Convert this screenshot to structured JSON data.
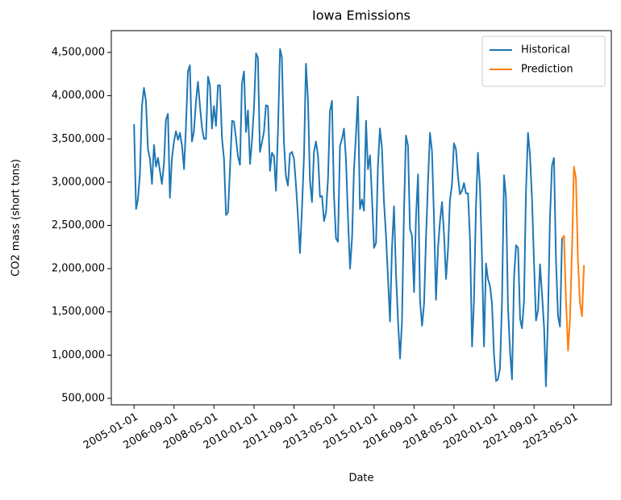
{
  "chart_data": {
    "type": "line",
    "title": "Iowa Emissions",
    "x_label": "Date",
    "y_label": "CO2 mass (short tons)",
    "xlim": [
      "2004-01-21",
      "2024-11-20"
    ],
    "xticks": [
      "2005-01-01",
      "2006-09-01",
      "2008-05-01",
      "2010-01-01",
      "2011-09-01",
      "2013-05-01",
      "2015-01-01",
      "2016-09-01",
      "2018-05-01",
      "2020-01-01",
      "2021-09-01",
      "2023-05-01"
    ],
    "ylim": [
      425000,
      4752000
    ],
    "yticks": [
      {
        "value": 500000,
        "label": "500,000"
      },
      {
        "value": 1000000,
        "label": "1,000,000"
      },
      {
        "value": 1500000,
        "label": "1,500,000"
      },
      {
        "value": 2000000,
        "label": "2,000,000"
      },
      {
        "value": 2500000,
        "label": "2,500,000"
      },
      {
        "value": 3000000,
        "label": "3,000,000"
      },
      {
        "value": 3500000,
        "label": "3,500,000"
      },
      {
        "value": 4000000,
        "label": "4,000,000"
      },
      {
        "value": 4500000,
        "label": "4,500,000"
      }
    ],
    "grid": false,
    "legend": "upper right",
    "series": [
      {
        "name": "Historical",
        "color": "#1f77b4",
        "x": [
          "2005-01-01",
          "2005-02-01",
          "2005-03-01",
          "2005-04-01",
          "2005-05-01",
          "2005-06-01",
          "2005-07-01",
          "2005-08-01",
          "2005-09-01",
          "2005-10-01",
          "2005-11-01",
          "2005-12-01",
          "2006-01-01",
          "2006-02-01",
          "2006-03-01",
          "2006-04-01",
          "2006-05-01",
          "2006-06-01",
          "2006-07-01",
          "2006-08-01",
          "2006-09-01",
          "2006-10-01",
          "2006-11-01",
          "2006-12-01",
          "2007-01-01",
          "2007-02-01",
          "2007-03-01",
          "2007-04-01",
          "2007-05-01",
          "2007-06-01",
          "2007-07-01",
          "2007-08-01",
          "2007-09-01",
          "2007-10-01",
          "2007-11-01",
          "2007-12-01",
          "2008-01-01",
          "2008-02-01",
          "2008-03-01",
          "2008-04-01",
          "2008-05-01",
          "2008-06-01",
          "2008-07-01",
          "2008-08-01",
          "2008-09-01",
          "2008-10-01",
          "2008-11-01",
          "2008-12-01",
          "2009-01-01",
          "2009-02-01",
          "2009-03-01",
          "2009-04-01",
          "2009-05-01",
          "2009-06-01",
          "2009-07-01",
          "2009-08-01",
          "2009-09-01",
          "2009-10-01",
          "2009-11-01",
          "2009-12-01",
          "2010-01-01",
          "2010-02-01",
          "2010-03-01",
          "2010-04-01",
          "2010-05-01",
          "2010-06-01",
          "2010-07-01",
          "2010-08-01",
          "2010-09-01",
          "2010-10-01",
          "2010-11-01",
          "2010-12-01",
          "2011-01-01",
          "2011-02-01",
          "2011-03-01",
          "2011-04-01",
          "2011-05-01",
          "2011-06-01",
          "2011-07-01",
          "2011-08-01",
          "2011-09-01",
          "2011-10-01",
          "2011-11-01",
          "2011-12-01",
          "2012-01-01",
          "2012-02-01",
          "2012-03-01",
          "2012-04-01",
          "2012-05-01",
          "2012-06-01",
          "2012-07-01",
          "2012-08-01",
          "2012-09-01",
          "2012-10-01",
          "2012-11-01",
          "2012-12-01",
          "2013-01-01",
          "2013-02-01",
          "2013-03-01",
          "2013-04-01",
          "2013-05-01",
          "2013-06-01",
          "2013-07-01",
          "2013-08-01",
          "2013-09-01",
          "2013-10-01",
          "2013-11-01",
          "2013-12-01",
          "2014-01-01",
          "2014-02-01",
          "2014-03-01",
          "2014-04-01",
          "2014-05-01",
          "2014-06-01",
          "2014-07-01",
          "2014-08-01",
          "2014-09-01",
          "2014-10-01",
          "2014-11-01",
          "2014-12-01",
          "2015-01-01",
          "2015-02-01",
          "2015-03-01",
          "2015-04-01",
          "2015-05-01",
          "2015-06-01",
          "2015-07-01",
          "2015-08-01",
          "2015-09-01",
          "2015-10-01",
          "2015-11-01",
          "2015-12-01",
          "2016-01-01",
          "2016-02-01",
          "2016-03-01",
          "2016-04-01",
          "2016-05-01",
          "2016-06-01",
          "2016-07-01",
          "2016-08-01",
          "2016-09-01",
          "2016-10-01",
          "2016-11-01",
          "2016-12-01",
          "2017-01-01",
          "2017-02-01",
          "2017-03-01",
          "2017-04-01",
          "2017-05-01",
          "2017-06-01",
          "2017-07-01",
          "2017-08-01",
          "2017-09-01",
          "2017-10-01",
          "2017-11-01",
          "2017-12-01",
          "2018-01-01",
          "2018-02-01",
          "2018-03-01",
          "2018-04-01",
          "2018-05-01",
          "2018-06-01",
          "2018-07-01",
          "2018-08-01",
          "2018-09-01",
          "2018-10-01",
          "2018-11-01",
          "2018-12-01",
          "2019-01-01",
          "2019-02-01",
          "2019-03-01",
          "2019-04-01",
          "2019-05-01",
          "2019-06-01",
          "2019-07-01",
          "2019-08-01",
          "2019-09-01",
          "2019-10-01",
          "2019-11-01",
          "2019-12-01",
          "2020-01-01",
          "2020-02-01",
          "2020-03-01",
          "2020-04-01",
          "2020-05-01",
          "2020-06-01",
          "2020-07-01",
          "2020-08-01",
          "2020-09-01",
          "2020-10-01",
          "2020-11-01",
          "2020-12-01",
          "2021-01-01",
          "2021-02-01",
          "2021-03-01",
          "2021-04-01",
          "2021-05-01",
          "2021-06-01",
          "2021-07-01",
          "2021-08-01",
          "2021-09-01",
          "2021-10-01",
          "2021-11-01",
          "2021-12-01",
          "2022-01-01",
          "2022-02-01",
          "2022-03-01",
          "2022-04-01",
          "2022-05-01",
          "2022-06-01",
          "2022-07-01",
          "2022-08-01",
          "2022-09-01",
          "2022-10-01",
          "2022-11-01"
        ],
        "values": [
          3670000,
          2690000,
          2800000,
          3100000,
          3880000,
          4090000,
          3940000,
          3380000,
          3270000,
          2980000,
          3430000,
          3180000,
          3280000,
          3120000,
          2980000,
          3210000,
          3720000,
          3790000,
          2820000,
          3280000,
          3470000,
          3590000,
          3490000,
          3570000,
          3420000,
          3150000,
          3620000,
          4280000,
          4350000,
          3470000,
          3580000,
          3930000,
          4160000,
          3880000,
          3630000,
          3500000,
          3500000,
          4220000,
          4120000,
          3620000,
          3880000,
          3650000,
          4120000,
          4120000,
          3500000,
          3270000,
          2620000,
          2650000,
          3170000,
          3710000,
          3700000,
          3510000,
          3300000,
          3200000,
          4140000,
          4280000,
          3580000,
          3830000,
          3210000,
          3480000,
          3870000,
          4490000,
          4440000,
          3350000,
          3460000,
          3580000,
          3890000,
          3880000,
          3130000,
          3340000,
          3300000,
          2900000,
          3610000,
          4540000,
          4440000,
          3470000,
          3070000,
          2960000,
          3330000,
          3350000,
          3270000,
          2970000,
          2600000,
          2180000,
          2700000,
          3320000,
          4370000,
          3950000,
          3020000,
          2770000,
          3350000,
          3470000,
          3300000,
          2830000,
          2840000,
          2550000,
          2650000,
          3060000,
          3820000,
          3940000,
          2860000,
          2350000,
          2310000,
          3420000,
          3500000,
          3620000,
          3250000,
          2580000,
          2000000,
          2360000,
          3130000,
          3550000,
          3990000,
          2690000,
          2800000,
          2670000,
          3710000,
          3150000,
          3310000,
          2820000,
          2240000,
          2300000,
          3180000,
          3620000,
          3400000,
          2780000,
          2400000,
          1900000,
          1390000,
          2230000,
          2720000,
          1950000,
          1400000,
          960000,
          1380000,
          2660000,
          3540000,
          3420000,
          2460000,
          2380000,
          1730000,
          2600000,
          3090000,
          1630000,
          1340000,
          1600000,
          2330000,
          2990000,
          3570000,
          3360000,
          2600000,
          1640000,
          2240000,
          2550000,
          2770000,
          2400000,
          1880000,
          2240000,
          2790000,
          2970000,
          3450000,
          3380000,
          3070000,
          2860000,
          2900000,
          2990000,
          2870000,
          2870000,
          2330000,
          1100000,
          1600000,
          2710000,
          3340000,
          2950000,
          2160000,
          1100000,
          2060000,
          1880000,
          1800000,
          1600000,
          1000000,
          700000,
          720000,
          850000,
          1600000,
          3080000,
          2830000,
          1550000,
          1040000,
          720000,
          1900000,
          2270000,
          2240000,
          1420000,
          1310000,
          1620000,
          2880000,
          3570000,
          3320000,
          2810000,
          2060000,
          1400000,
          1520000,
          2050000,
          1700000,
          1320000,
          640000,
          1430000,
          2580000,
          3190000,
          3280000,
          2100000,
          1450000,
          1330000,
          2350000
        ]
      },
      {
        "name": "Prediction",
        "color": "#ff7f0e",
        "x": [
          "2022-11-01",
          "2022-12-01",
          "2023-01-01",
          "2023-02-01",
          "2023-03-01",
          "2023-04-01",
          "2023-05-01",
          "2023-06-01",
          "2023-07-01",
          "2023-08-01",
          "2023-09-01",
          "2023-10-01"
        ],
        "values": [
          2350000,
          2380000,
          1620000,
          1050000,
          1400000,
          2200000,
          3180000,
          3040000,
          2100000,
          1600000,
          1450000,
          2040000
        ]
      }
    ]
  }
}
